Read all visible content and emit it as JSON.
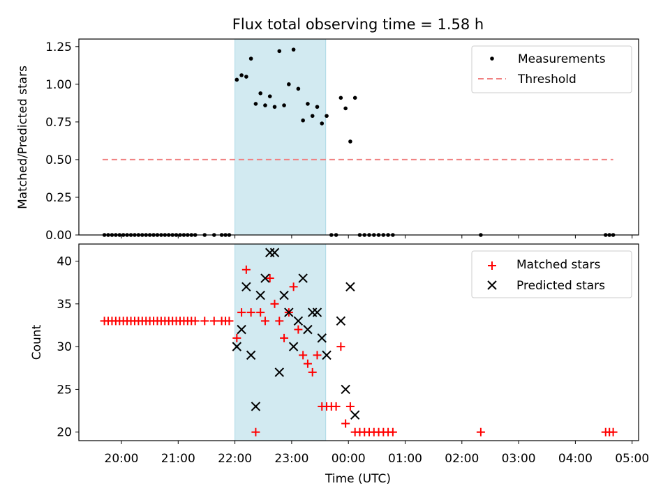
{
  "chart_data": [
    {
      "type": "scatter",
      "title": "Flux total observing time = 1.58 h",
      "xlabel": "",
      "ylabel": "Matched/Predicted stars",
      "ylim": [
        0,
        1.3
      ],
      "yticks": [
        "0.00",
        "0.25",
        "0.50",
        "0.75",
        "1.00",
        "1.25"
      ],
      "shaded_interval": [
        "22:00",
        "23:36"
      ],
      "legend": "top-right",
      "grid": false,
      "threshold": {
        "name": "Threshold",
        "value": 0.5,
        "x": [
          "19:40",
          "04:40"
        ]
      },
      "series": [
        {
          "name": "Measurements",
          "points": [
            [
              "19:42",
              0
            ],
            [
              "19:46",
              0
            ],
            [
              "19:50",
              0
            ],
            [
              "19:54",
              0
            ],
            [
              "19:58",
              0
            ],
            [
              "20:02",
              0
            ],
            [
              "20:06",
              0
            ],
            [
              "20:10",
              0
            ],
            [
              "20:14",
              0
            ],
            [
              "20:18",
              0
            ],
            [
              "20:22",
              0
            ],
            [
              "20:26",
              0
            ],
            [
              "20:30",
              0
            ],
            [
              "20:34",
              0
            ],
            [
              "20:38",
              0
            ],
            [
              "20:42",
              0
            ],
            [
              "20:46",
              0
            ],
            [
              "20:50",
              0
            ],
            [
              "20:54",
              0
            ],
            [
              "20:58",
              0
            ],
            [
              "21:02",
              0
            ],
            [
              "21:06",
              0
            ],
            [
              "21:10",
              0
            ],
            [
              "21:14",
              0
            ],
            [
              "21:18",
              0
            ],
            [
              "21:28",
              0
            ],
            [
              "21:38",
              0
            ],
            [
              "21:46",
              0
            ],
            [
              "21:50",
              0
            ],
            [
              "21:54",
              0
            ],
            [
              "22:02",
              1.03
            ],
            [
              "22:07",
              1.06
            ],
            [
              "22:12",
              1.05
            ],
            [
              "22:17",
              1.17
            ],
            [
              "22:22",
              0.87
            ],
            [
              "22:27",
              0.94
            ],
            [
              "22:32",
              0.86
            ],
            [
              "22:37",
              0.92
            ],
            [
              "22:42",
              0.85
            ],
            [
              "22:47",
              1.22
            ],
            [
              "22:52",
              0.86
            ],
            [
              "22:57",
              1.0
            ],
            [
              "23:02",
              1.23
            ],
            [
              "23:07",
              0.97
            ],
            [
              "23:12",
              0.76
            ],
            [
              "23:17",
              0.87
            ],
            [
              "23:22",
              0.79
            ],
            [
              "23:27",
              0.85
            ],
            [
              "23:32",
              0.74
            ],
            [
              "23:37",
              0.79
            ],
            [
              "23:42",
              0
            ],
            [
              "23:47",
              0
            ],
            [
              "23:52",
              0.91
            ],
            [
              "23:57",
              0.84
            ],
            [
              "00:02",
              0.62
            ],
            [
              "00:07",
              0.91
            ],
            [
              "00:12",
              0
            ],
            [
              "00:17",
              0
            ],
            [
              "00:22",
              0
            ],
            [
              "00:27",
              0
            ],
            [
              "00:32",
              0
            ],
            [
              "00:37",
              0
            ],
            [
              "00:42",
              0
            ],
            [
              "00:47",
              0
            ],
            [
              "02:20",
              0
            ],
            [
              "04:32",
              0
            ],
            [
              "04:36",
              0
            ],
            [
              "04:40",
              0
            ]
          ]
        }
      ]
    },
    {
      "type": "scatter",
      "title": "",
      "xlabel": "Time (UTC)",
      "ylabel": "Count",
      "ylim": [
        19,
        42
      ],
      "yticks": [
        "20",
        "25",
        "30",
        "35",
        "40"
      ],
      "xticks": [
        "20:00",
        "21:00",
        "22:00",
        "23:00",
        "00:00",
        "01:00",
        "02:00",
        "03:00",
        "04:00",
        "05:00"
      ],
      "shaded_interval": [
        "22:00",
        "23:36"
      ],
      "legend": "top-right",
      "grid": false,
      "series": [
        {
          "name": "Matched stars",
          "marker": "plus",
          "points": [
            [
              "19:42",
              33
            ],
            [
              "19:46",
              33
            ],
            [
              "19:50",
              33
            ],
            [
              "19:54",
              33
            ],
            [
              "19:58",
              33
            ],
            [
              "20:02",
              33
            ],
            [
              "20:06",
              33
            ],
            [
              "20:10",
              33
            ],
            [
              "20:14",
              33
            ],
            [
              "20:18",
              33
            ],
            [
              "20:22",
              33
            ],
            [
              "20:26",
              33
            ],
            [
              "20:30",
              33
            ],
            [
              "20:34",
              33
            ],
            [
              "20:38",
              33
            ],
            [
              "20:42",
              33
            ],
            [
              "20:46",
              33
            ],
            [
              "20:50",
              33
            ],
            [
              "20:54",
              33
            ],
            [
              "20:58",
              33
            ],
            [
              "21:02",
              33
            ],
            [
              "21:06",
              33
            ],
            [
              "21:10",
              33
            ],
            [
              "21:14",
              33
            ],
            [
              "21:18",
              33
            ],
            [
              "21:28",
              33
            ],
            [
              "21:38",
              33
            ],
            [
              "21:46",
              33
            ],
            [
              "21:50",
              33
            ],
            [
              "21:54",
              33
            ],
            [
              "22:02",
              31
            ],
            [
              "22:07",
              34
            ],
            [
              "22:12",
              39
            ],
            [
              "22:17",
              34
            ],
            [
              "22:22",
              20
            ],
            [
              "22:27",
              34
            ],
            [
              "22:32",
              33
            ],
            [
              "22:37",
              38
            ],
            [
              "22:42",
              35
            ],
            [
              "22:47",
              33
            ],
            [
              "22:52",
              31
            ],
            [
              "22:57",
              34
            ],
            [
              "23:02",
              37
            ],
            [
              "23:07",
              32
            ],
            [
              "23:12",
              29
            ],
            [
              "23:17",
              28
            ],
            [
              "23:22",
              27
            ],
            [
              "23:27",
              29
            ],
            [
              "23:32",
              23
            ],
            [
              "23:37",
              23
            ],
            [
              "23:42",
              23
            ],
            [
              "23:47",
              23
            ],
            [
              "23:52",
              30
            ],
            [
              "23:57",
              21
            ],
            [
              "00:02",
              23
            ],
            [
              "00:07",
              20
            ],
            [
              "00:12",
              20
            ],
            [
              "00:17",
              20
            ],
            [
              "00:22",
              20
            ],
            [
              "00:27",
              20
            ],
            [
              "00:32",
              20
            ],
            [
              "00:37",
              20
            ],
            [
              "00:42",
              20
            ],
            [
              "00:47",
              20
            ],
            [
              "02:20",
              20
            ],
            [
              "04:32",
              20
            ],
            [
              "04:36",
              20
            ],
            [
              "04:40",
              20
            ]
          ]
        },
        {
          "name": "Predicted stars",
          "marker": "x",
          "points": [
            [
              "22:02",
              30
            ],
            [
              "22:07",
              32
            ],
            [
              "22:12",
              37
            ],
            [
              "22:17",
              29
            ],
            [
              "22:22",
              23
            ],
            [
              "22:27",
              36
            ],
            [
              "22:32",
              38
            ],
            [
              "22:37",
              41
            ],
            [
              "22:42",
              41
            ],
            [
              "22:47",
              27
            ],
            [
              "22:52",
              36
            ],
            [
              "22:57",
              34
            ],
            [
              "23:02",
              30
            ],
            [
              "23:07",
              33
            ],
            [
              "23:12",
              38
            ],
            [
              "23:17",
              32
            ],
            [
              "23:22",
              34
            ],
            [
              "23:27",
              34
            ],
            [
              "23:32",
              31
            ],
            [
              "23:37",
              29
            ],
            [
              "23:52",
              33
            ],
            [
              "23:57",
              25
            ],
            [
              "00:02",
              37
            ],
            [
              "00:07",
              22
            ]
          ]
        }
      ]
    }
  ],
  "colors": {
    "measurements": "#000000",
    "threshold": "#f08080",
    "matched": "#ff0000",
    "predicted": "#000000",
    "shade": "#add8e6"
  }
}
